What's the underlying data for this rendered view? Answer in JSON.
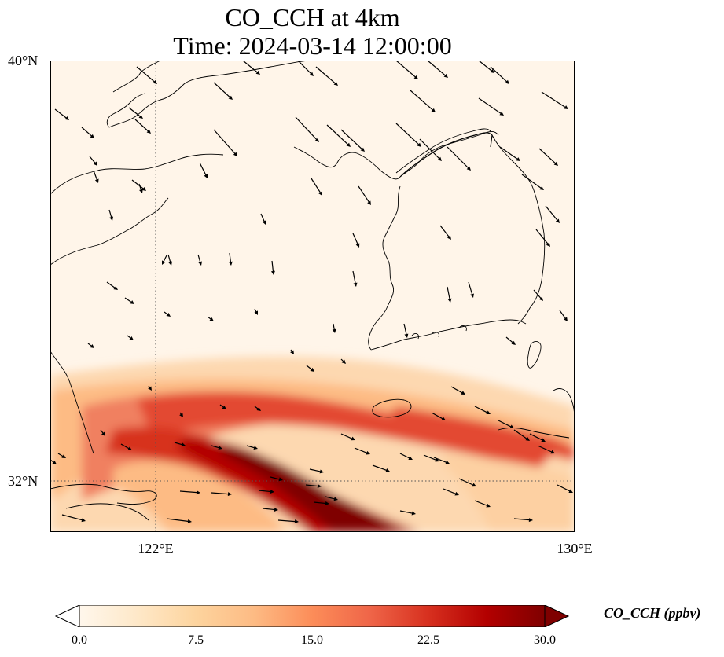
{
  "title": {
    "line1": "CO_CCH at 4km",
    "line2": "Time: 2024-03-14 12:00:00"
  },
  "map": {
    "lat_labels": [
      "40°N",
      "32°N"
    ],
    "lon_labels": [
      "122°E",
      "130°E"
    ],
    "lon_range": [
      120.0,
      130.0
    ],
    "lat_range": [
      31.0,
      40.0
    ],
    "gridlines_lon": [
      122.0
    ],
    "gridlines_lat": [
      32.0
    ],
    "gridline_style": "dotted"
  },
  "field": {
    "variable": "CO_CCH",
    "unit": "ppbv",
    "plume_description": "band of elevated concentration in southern part of map, maximum near 125-127E, 31-32N"
  },
  "colorbar": {
    "label": "CO_CCH (ppbv)",
    "ticks": [
      "0.0",
      "7.5",
      "15.0",
      "22.5",
      "30.0"
    ],
    "vmin": 0.0,
    "vmax": 30.0,
    "colormap": "OrRd",
    "colors": [
      "#fff7ec",
      "#fee8c8",
      "#fdd49e",
      "#fdbb84",
      "#fc8d59",
      "#ef6548",
      "#d7301f",
      "#b30000",
      "#7f0000"
    ],
    "extend": "both"
  },
  "wind_vectors": {
    "description": "black quiver arrows, generally pointing southeast",
    "color": "#000000"
  }
}
